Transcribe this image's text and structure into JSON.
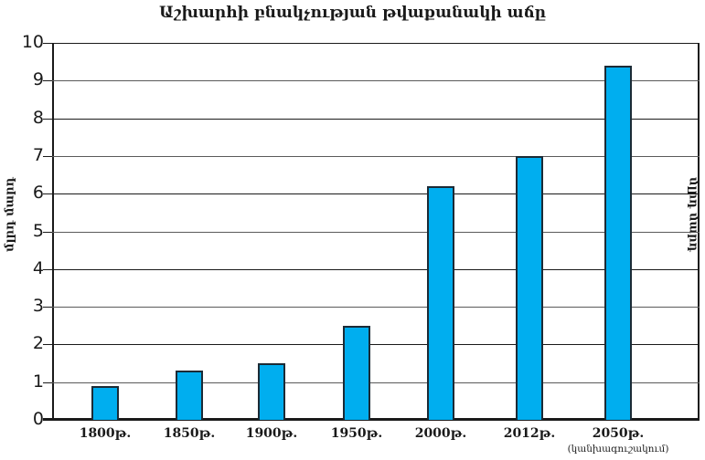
{
  "chart_data": {
    "type": "bar",
    "title": "Աշխարհի բնակչության թվաքանակի աճը",
    "xlabel": "",
    "ylabel": "մլրդ մարդ",
    "ylabel_right": "մլրդ մարդ",
    "categories": [
      "1800թ.",
      "1850թ.",
      "1900թ.",
      "1950թ.",
      "2000թ.",
      "2012թ.",
      "2050թ."
    ],
    "category_notes": [
      "",
      "",
      "",
      "",
      "",
      "",
      "(կանխագուշակում)"
    ],
    "values": [
      0.9,
      1.3,
      1.5,
      2.5,
      6.2,
      7.0,
      9.4
    ],
    "ylim": [
      0,
      10
    ],
    "yticks": [
      0,
      1,
      2,
      3,
      4,
      5,
      6,
      7,
      8,
      9,
      10
    ],
    "grid": true,
    "legend": null,
    "bar_color": "#00aeef",
    "bar_edge_color": "#1c2b36"
  },
  "labels": {
    "title": "Աշխարհի բնակչության թվաքանակի աճը",
    "y_left": "մլրդ մարդ",
    "y_right": "մլրդ մարդ",
    "forecast_note": "(կանխագուշակում)"
  }
}
